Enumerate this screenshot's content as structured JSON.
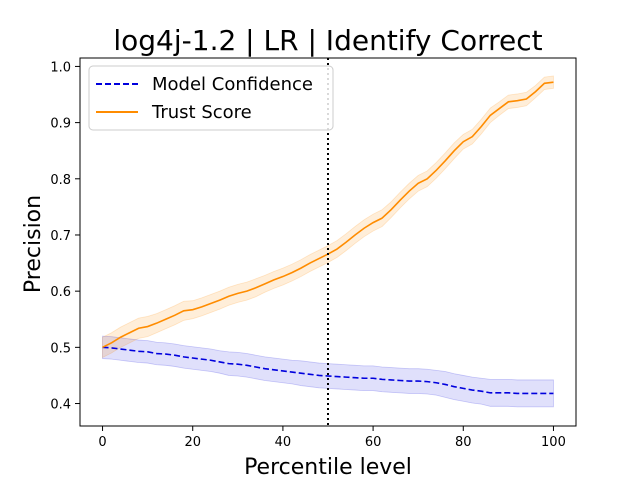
{
  "chart_data": {
    "type": "line",
    "title": "log4j-1.2 | LR | Identify Correct",
    "xlabel": "Percentile level",
    "ylabel": "Precision",
    "xlim": [
      -5,
      105
    ],
    "ylim": [
      0.36,
      1.015
    ],
    "xticks": [
      0,
      20,
      40,
      60,
      80,
      100
    ],
    "yticks": [
      0.4,
      0.5,
      0.6,
      0.7,
      0.8,
      0.9,
      1.0
    ],
    "ytick_labels": [
      "0.4",
      "0.5",
      "0.6",
      "0.7",
      "0.8",
      "0.9",
      "1.0"
    ],
    "grid": false,
    "legend_position": "upper-left",
    "vline": {
      "x": 50,
      "style": "dotted",
      "color": "#000000"
    },
    "x": [
      0,
      2,
      4,
      6,
      8,
      10,
      12,
      14,
      16,
      18,
      20,
      22,
      24,
      26,
      28,
      30,
      32,
      34,
      36,
      38,
      40,
      42,
      44,
      46,
      48,
      50,
      52,
      54,
      56,
      58,
      60,
      62,
      64,
      66,
      68,
      70,
      72,
      74,
      76,
      78,
      80,
      82,
      84,
      86,
      88,
      90,
      92,
      94,
      96,
      98,
      100
    ],
    "series": [
      {
        "name": "Model Confidence",
        "color": "#0000dd",
        "line_style": "dashed",
        "values": [
          0.5,
          0.499,
          0.497,
          0.495,
          0.493,
          0.492,
          0.489,
          0.488,
          0.486,
          0.483,
          0.481,
          0.479,
          0.477,
          0.474,
          0.471,
          0.47,
          0.468,
          0.465,
          0.462,
          0.46,
          0.458,
          0.456,
          0.454,
          0.452,
          0.45,
          0.449,
          0.448,
          0.447,
          0.446,
          0.445,
          0.445,
          0.443,
          0.442,
          0.441,
          0.44,
          0.44,
          0.439,
          0.437,
          0.434,
          0.43,
          0.427,
          0.424,
          0.422,
          0.419,
          0.419,
          0.419,
          0.418,
          0.418,
          0.418,
          0.418,
          0.418
        ],
        "band_halfwidth": [
          0.02,
          0.02,
          0.02,
          0.02,
          0.02,
          0.02,
          0.02,
          0.02,
          0.02,
          0.02,
          0.02,
          0.02,
          0.02,
          0.02,
          0.021,
          0.021,
          0.021,
          0.021,
          0.021,
          0.021,
          0.021,
          0.021,
          0.022,
          0.022,
          0.022,
          0.022,
          0.022,
          0.022,
          0.022,
          0.022,
          0.022,
          0.022,
          0.022,
          0.022,
          0.022,
          0.022,
          0.022,
          0.022,
          0.023,
          0.023,
          0.023,
          0.023,
          0.023,
          0.024,
          0.024,
          0.024,
          0.024,
          0.024,
          0.024,
          0.024,
          0.024
        ]
      },
      {
        "name": "Trust Score",
        "color": "#ff8c00",
        "line_style": "solid",
        "values": [
          0.5,
          0.508,
          0.518,
          0.526,
          0.534,
          0.537,
          0.543,
          0.55,
          0.557,
          0.565,
          0.567,
          0.572,
          0.578,
          0.584,
          0.591,
          0.596,
          0.6,
          0.606,
          0.613,
          0.62,
          0.626,
          0.633,
          0.641,
          0.65,
          0.658,
          0.666,
          0.675,
          0.687,
          0.7,
          0.712,
          0.722,
          0.73,
          0.745,
          0.762,
          0.778,
          0.792,
          0.8,
          0.815,
          0.832,
          0.85,
          0.866,
          0.875,
          0.893,
          0.913,
          0.925,
          0.937,
          0.939,
          0.942,
          0.955,
          0.97,
          0.972
        ],
        "band_halfwidth": [
          0.018,
          0.018,
          0.018,
          0.018,
          0.018,
          0.018,
          0.017,
          0.017,
          0.017,
          0.017,
          0.016,
          0.016,
          0.016,
          0.016,
          0.016,
          0.016,
          0.016,
          0.016,
          0.015,
          0.015,
          0.015,
          0.015,
          0.015,
          0.015,
          0.015,
          0.015,
          0.015,
          0.015,
          0.015,
          0.015,
          0.015,
          0.015,
          0.014,
          0.014,
          0.014,
          0.014,
          0.014,
          0.014,
          0.014,
          0.014,
          0.013,
          0.013,
          0.013,
          0.013,
          0.012,
          0.012,
          0.012,
          0.012,
          0.011,
          0.011,
          0.011
        ]
      }
    ]
  }
}
